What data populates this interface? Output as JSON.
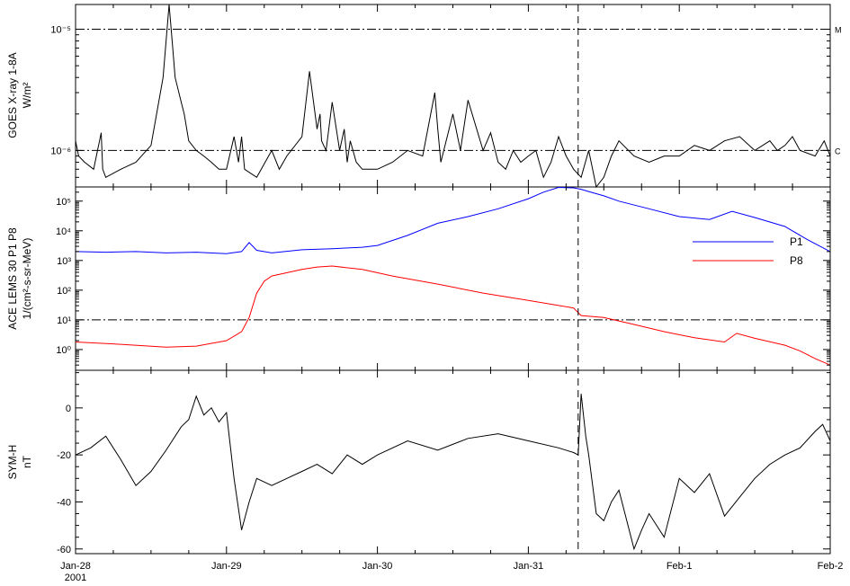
{
  "chart_data": [
    {
      "type": "line",
      "ylabel": "GOES X-ray 1-8A",
      "yunit": "W/m²",
      "yscale": "log",
      "ylim": [
        5e-07,
        1.6e-05
      ],
      "yticks": [
        {
          "value": 1e-06,
          "label": "10⁻⁶"
        },
        {
          "value": 1e-05,
          "label": "10⁻⁵"
        }
      ],
      "reference_lines": [
        {
          "value": 1e-06,
          "label": "C"
        },
        {
          "value": 1e-05,
          "label": "M"
        }
      ],
      "series": [
        {
          "color": "#000000",
          "x": [
            0,
            0.02,
            0.06,
            0.12,
            0.17,
            0.18,
            0.2,
            0.3,
            0.4,
            0.5,
            0.58,
            0.62,
            0.64,
            0.66,
            0.7,
            0.72,
            0.75,
            0.8,
            0.85,
            0.9,
            0.95,
            1.0,
            1.05,
            1.08,
            1.1,
            1.12,
            1.2,
            1.3,
            1.35,
            1.4,
            1.5,
            1.55,
            1.6,
            1.62,
            1.63,
            1.66,
            1.7,
            1.75,
            1.78,
            1.8,
            1.82,
            1.86,
            1.9,
            2.0,
            2.1,
            2.2,
            2.3,
            2.38,
            2.4,
            2.42,
            2.5,
            2.55,
            2.6,
            2.7,
            2.75,
            2.8,
            2.85,
            2.9,
            2.95,
            3.0,
            3.05,
            3.1,
            3.15,
            3.2,
            3.25,
            3.3,
            3.35,
            3.4,
            3.45,
            3.5,
            3.55,
            3.6,
            3.7,
            3.8,
            3.9,
            4.0,
            4.1,
            4.2,
            4.3,
            4.4,
            4.5,
            4.6,
            4.65,
            4.7,
            4.75,
            4.8,
            4.9,
            4.96,
            5.0
          ],
          "y": [
            1.2e-06,
            9e-07,
            8e-07,
            7e-07,
            1.4e-06,
            7e-07,
            6e-07,
            7e-07,
            8e-07,
            1.1e-06,
            4e-06,
            1.6e-05,
            8e-06,
            4e-06,
            2.5e-06,
            2e-06,
            1.2e-06,
            1e-06,
            9e-07,
            8e-07,
            7e-07,
            7e-07,
            1.3e-06,
            8e-07,
            1.3e-06,
            7e-07,
            6e-07,
            1e-06,
            7e-07,
            9e-07,
            1.3e-06,
            4.5e-06,
            1.5e-06,
            2e-06,
            1.2e-06,
            1e-06,
            2.5e-06,
            1e-06,
            1.5e-06,
            8e-07,
            1.2e-06,
            8e-07,
            7e-07,
            7e-07,
            8e-07,
            1e-06,
            9e-07,
            3e-06,
            1.5e-06,
            8e-07,
            2e-06,
            1e-06,
            2.6e-06,
            1e-06,
            1.4e-06,
            8e-07,
            7e-07,
            1e-06,
            8e-07,
            9e-07,
            1e-06,
            6e-07,
            8e-07,
            1.3e-06,
            9e-07,
            7e-07,
            6e-07,
            1e-06,
            5e-07,
            6e-07,
            9e-07,
            1.2e-06,
            9e-07,
            8e-07,
            9e-07,
            9e-07,
            1.1e-06,
            1e-06,
            1.2e-06,
            1.3e-06,
            1e-06,
            1.2e-06,
            1e-06,
            1.1e-06,
            1.3e-06,
            1e-06,
            9e-07,
            1.2e-06,
            9e-07
          ]
        }
      ]
    },
    {
      "type": "line",
      "ylabel": "ACE LEMS 30 P1 P8",
      "yunit": "1/(cm²-s-sr-MeV)",
      "yscale": "log",
      "ylim": [
        0.2,
        300000
      ],
      "yticks": [
        {
          "value": 1,
          "label": "10⁰"
        },
        {
          "value": 10,
          "label": "10¹"
        },
        {
          "value": 100,
          "label": "10²"
        },
        {
          "value": 1000,
          "label": "10³"
        },
        {
          "value": 10000,
          "label": "10⁴"
        },
        {
          "value": 100000,
          "label": "10⁵"
        }
      ],
      "reference_lines": [
        {
          "value": 10,
          "label": ""
        }
      ],
      "legend": {
        "placement": "right"
      },
      "series": [
        {
          "name": "P1",
          "color": "#0000ff",
          "x": [
            0,
            0.2,
            0.4,
            0.6,
            0.8,
            1.0,
            1.1,
            1.15,
            1.2,
            1.3,
            1.5,
            1.7,
            1.9,
            2.0,
            2.2,
            2.4,
            2.6,
            2.8,
            3.0,
            3.1,
            3.2,
            3.3,
            3.35,
            3.4,
            3.5,
            3.6,
            3.8,
            4.0,
            4.2,
            4.35,
            4.5,
            4.7,
            4.85,
            5.0
          ],
          "y": [
            2000,
            1900,
            2000,
            1800,
            1900,
            1700,
            2000,
            4000,
            2200,
            1800,
            2300,
            2500,
            2800,
            3200,
            7000,
            18000,
            30000,
            55000,
            120000,
            200000,
            290000,
            280000,
            250000,
            210000,
            150000,
            100000,
            55000,
            30000,
            24000,
            45000,
            28000,
            14000,
            5000,
            2000
          ]
        },
        {
          "name": "P8",
          "color": "#ff0000",
          "x": [
            0,
            0.3,
            0.6,
            0.8,
            1.0,
            1.1,
            1.15,
            1.2,
            1.25,
            1.3,
            1.5,
            1.6,
            1.7,
            1.9,
            2.1,
            2.4,
            2.7,
            3.0,
            3.3,
            3.35,
            3.5,
            3.7,
            3.9,
            4.1,
            4.3,
            4.38,
            4.5,
            4.7,
            4.8,
            4.9,
            5.0
          ],
          "y": [
            1.8,
            1.5,
            1.2,
            1.3,
            2,
            4,
            12,
            80,
            200,
            300,
            500,
            600,
            650,
            500,
            300,
            160,
            80,
            45,
            25,
            14,
            12,
            7,
            4,
            2.5,
            1.8,
            3.5,
            2.4,
            1.4,
            0.9,
            0.5,
            0.3
          ]
        }
      ]
    },
    {
      "type": "line",
      "ylabel": "SYM-H",
      "yunit": "nT",
      "ylim": [
        -62,
        16
      ],
      "yticks": [
        {
          "value": 0,
          "label": "0"
        },
        {
          "value": -20,
          "label": "-20"
        },
        {
          "value": -40,
          "label": "-40"
        },
        {
          "value": -60,
          "label": "-60"
        }
      ],
      "series": [
        {
          "color": "#000000",
          "x": [
            0,
            0.1,
            0.2,
            0.3,
            0.4,
            0.5,
            0.6,
            0.7,
            0.75,
            0.8,
            0.85,
            0.9,
            0.95,
            1.0,
            1.05,
            1.1,
            1.15,
            1.2,
            1.3,
            1.4,
            1.5,
            1.6,
            1.7,
            1.8,
            1.9,
            2.0,
            2.2,
            2.4,
            2.6,
            2.8,
            3.0,
            3.2,
            3.3,
            3.33,
            3.35,
            3.38,
            3.4,
            3.45,
            3.5,
            3.55,
            3.6,
            3.7,
            3.75,
            3.8,
            3.9,
            4.0,
            4.1,
            4.2,
            4.3,
            4.4,
            4.5,
            4.6,
            4.7,
            4.8,
            4.9,
            4.95,
            5.0
          ],
          "y": [
            -20,
            -17,
            -12,
            -22,
            -33,
            -27,
            -18,
            -8,
            -5,
            5,
            -3,
            0,
            -6,
            -2,
            -30,
            -52,
            -40,
            -30,
            -33,
            -30,
            -27,
            -24,
            -28,
            -20,
            -24,
            -20,
            -14,
            -18,
            -13,
            -11,
            -14,
            -17,
            -19,
            -20,
            6,
            -12,
            -20,
            -45,
            -48,
            -40,
            -35,
            -60,
            -52,
            -45,
            -55,
            -30,
            -36,
            -28,
            -46,
            -38,
            -30,
            -24,
            -20,
            -17,
            -10,
            -7,
            -14
          ]
        }
      ]
    }
  ],
  "x_axis": {
    "range": [
      0,
      5
    ],
    "ticks": [
      {
        "value": 0,
        "label": "Jan-28",
        "sublabel": "2001"
      },
      {
        "value": 1,
        "label": "Jan-29"
      },
      {
        "value": 2,
        "label": "Jan-30"
      },
      {
        "value": 3,
        "label": "Jan-31"
      },
      {
        "value": 4,
        "label": "Feb-1"
      },
      {
        "value": 5,
        "label": "Feb-2"
      }
    ],
    "event_marker": 3.33
  }
}
